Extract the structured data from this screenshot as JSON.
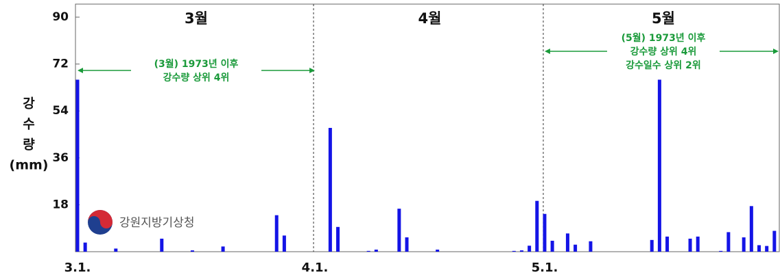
{
  "chart_data": {
    "type": "bar",
    "ylabel": [
      "강",
      "수",
      "량",
      "(mm)"
    ],
    "months": [
      "3월",
      "4월",
      "5월"
    ],
    "annotations": [
      {
        "lines": [
          "(3월) 1973년 이후",
          "강수량 상위 4위"
        ]
      },
      {
        "lines": [
          "(5월) 1973년 이후",
          "강수량 상위 4위",
          "강수일수 상위 2위"
        ]
      }
    ],
    "source": "강원지방기상청",
    "categories": [
      "3.1.",
      null,
      null,
      null,
      null,
      null,
      null,
      null,
      null,
      null,
      null,
      null,
      null,
      null,
      null,
      null,
      null,
      null,
      null,
      null,
      null,
      null,
      null,
      null,
      null,
      null,
      null,
      null,
      null,
      null,
      null,
      "4.1.",
      null,
      null,
      null,
      null,
      null,
      null,
      null,
      null,
      null,
      null,
      null,
      null,
      null,
      null,
      null,
      null,
      null,
      null,
      null,
      null,
      null,
      null,
      null,
      null,
      null,
      null,
      null,
      null,
      null,
      "5.1.",
      null,
      null,
      null,
      null,
      null,
      null,
      null,
      null,
      null,
      null,
      null,
      null,
      null,
      null,
      null,
      null,
      null,
      null,
      null,
      null,
      null,
      null,
      null,
      null,
      null,
      null,
      null,
      null,
      null,
      null
    ],
    "values": [
      66,
      3.5,
      0,
      0,
      0,
      1.2,
      0,
      0,
      0,
      0,
      0,
      5,
      0,
      0,
      0,
      0.5,
      0,
      0,
      0,
      2,
      0,
      0,
      0,
      0,
      0,
      0,
      14,
      6.2,
      0,
      0,
      0,
      0,
      0,
      47.5,
      9.5,
      0,
      0,
      0,
      0.3,
      0.8,
      0,
      0,
      16.5,
      5.5,
      0,
      0,
      0,
      0.8,
      0,
      0,
      0,
      0,
      0,
      0,
      0,
      0,
      0,
      0.3,
      0.5,
      2.3,
      19.5,
      14.5,
      4.2,
      0,
      7,
      2.7,
      0,
      4,
      0,
      0,
      0,
      0,
      0,
      0,
      0,
      4.5,
      66,
      5.8,
      0,
      0,
      5,
      5.8,
      0,
      0,
      0.3,
      7.5,
      0,
      5.5,
      17.5,
      2.5,
      2.2,
      8
    ],
    "color": "#1414e6",
    "ylim": [
      0,
      95
    ],
    "yticks": [
      18,
      36,
      54,
      72,
      90
    ]
  }
}
